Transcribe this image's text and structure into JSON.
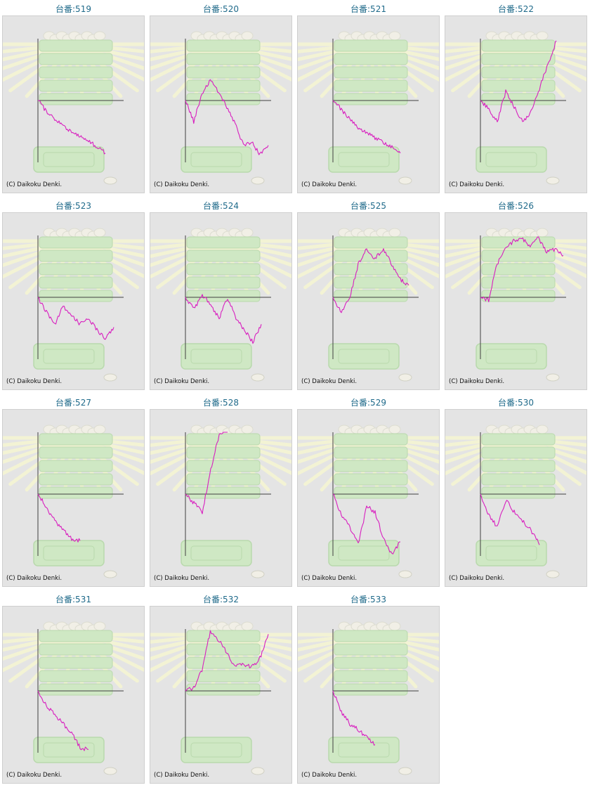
{
  "colors": {
    "panel_background": "#e4e4e4",
    "panel_border": "#cfcfcf",
    "title_text": "#1f6a8a",
    "series_line": "#d81fbf",
    "axis_line": "#404040",
    "background_art": "#cfe8c4"
  },
  "copyright_text": "(C) Daikoku Denki.",
  "chart_data": [
    {
      "type": "line",
      "title": "台番:519",
      "series": [
        {
          "values": [
            0,
            -0.18,
            -0.3,
            -0.42,
            -0.52,
            -0.6,
            -0.68,
            -0.78,
            -0.88
          ]
        }
      ]
    },
    {
      "type": "line",
      "title": "台番:520",
      "series": [
        {
          "values": [
            0,
            -0.35,
            0.1,
            0.35,
            0.15,
            -0.12,
            -0.4,
            -0.75,
            -0.7,
            -0.9,
            -0.75
          ]
        }
      ]
    },
    {
      "type": "line",
      "title": "台番:521",
      "series": [
        {
          "values": [
            0,
            -0.15,
            -0.3,
            -0.45,
            -0.55,
            -0.62,
            -0.7,
            -0.78,
            -0.88
          ]
        }
      ]
    },
    {
      "type": "line",
      "title": "台番:522",
      "series": [
        {
          "values": [
            0,
            -0.15,
            -0.35,
            0.15,
            -0.1,
            -0.35,
            -0.2,
            0.2,
            0.6,
            1.0
          ]
        }
      ]
    },
    {
      "type": "line",
      "title": "台番:523",
      "series": [
        {
          "values": [
            0,
            -0.25,
            -0.45,
            -0.15,
            -0.3,
            -0.45,
            -0.35,
            -0.55,
            -0.7,
            -0.5
          ]
        }
      ]
    },
    {
      "type": "line",
      "title": "台番:524",
      "series": [
        {
          "values": [
            0,
            -0.2,
            0.05,
            -0.15,
            -0.35,
            0,
            -0.35,
            -0.55,
            -0.75,
            -0.45
          ]
        }
      ]
    },
    {
      "type": "line",
      "title": "台番:525",
      "series": [
        {
          "values": [
            0,
            -0.25,
            0,
            0.55,
            0.8,
            0.65,
            0.8,
            0.55,
            0.3,
            0.2
          ]
        }
      ]
    },
    {
      "type": "line",
      "title": "台番:526",
      "series": [
        {
          "values": [
            0,
            -0.05,
            0.55,
            0.8,
            0.95,
            1.0,
            0.85,
            1.0,
            0.75,
            0.8,
            0.7
          ]
        }
      ]
    },
    {
      "type": "line",
      "title": "台番:527",
      "series": [
        {
          "values": [
            0,
            -0.22,
            -0.45,
            -0.6,
            -0.75,
            -0.78
          ]
        }
      ]
    },
    {
      "type": "line",
      "title": "台番:528",
      "series": [
        {
          "values": [
            0,
            -0.15,
            -0.3,
            0.4,
            1.0,
            1.1
          ]
        }
      ]
    },
    {
      "type": "line",
      "title": "台番:529",
      "series": [
        {
          "values": [
            0,
            -0.35,
            -0.55,
            -0.85,
            -0.2,
            -0.3,
            -0.75,
            -1.0,
            -0.8
          ]
        }
      ]
    },
    {
      "type": "line",
      "title": "台番:530",
      "series": [
        {
          "values": [
            0,
            -0.35,
            -0.55,
            -0.1,
            -0.3,
            -0.45,
            -0.6,
            -0.85
          ]
        }
      ]
    },
    {
      "type": "line",
      "title": "台番:531",
      "series": [
        {
          "values": [
            0,
            -0.25,
            -0.4,
            -0.55,
            -0.7,
            -0.95,
            -0.98
          ]
        }
      ]
    },
    {
      "type": "line",
      "title": "台番:532",
      "series": [
        {
          "values": [
            0,
            0.05,
            0.35,
            1.0,
            0.85,
            0.65,
            0.4,
            0.45,
            0.4,
            0.55,
            0.95
          ]
        }
      ]
    },
    {
      "type": "line",
      "title": "台番:533",
      "series": [
        {
          "values": [
            0,
            -0.35,
            -0.55,
            -0.65,
            -0.78,
            -0.9
          ]
        }
      ]
    }
  ]
}
